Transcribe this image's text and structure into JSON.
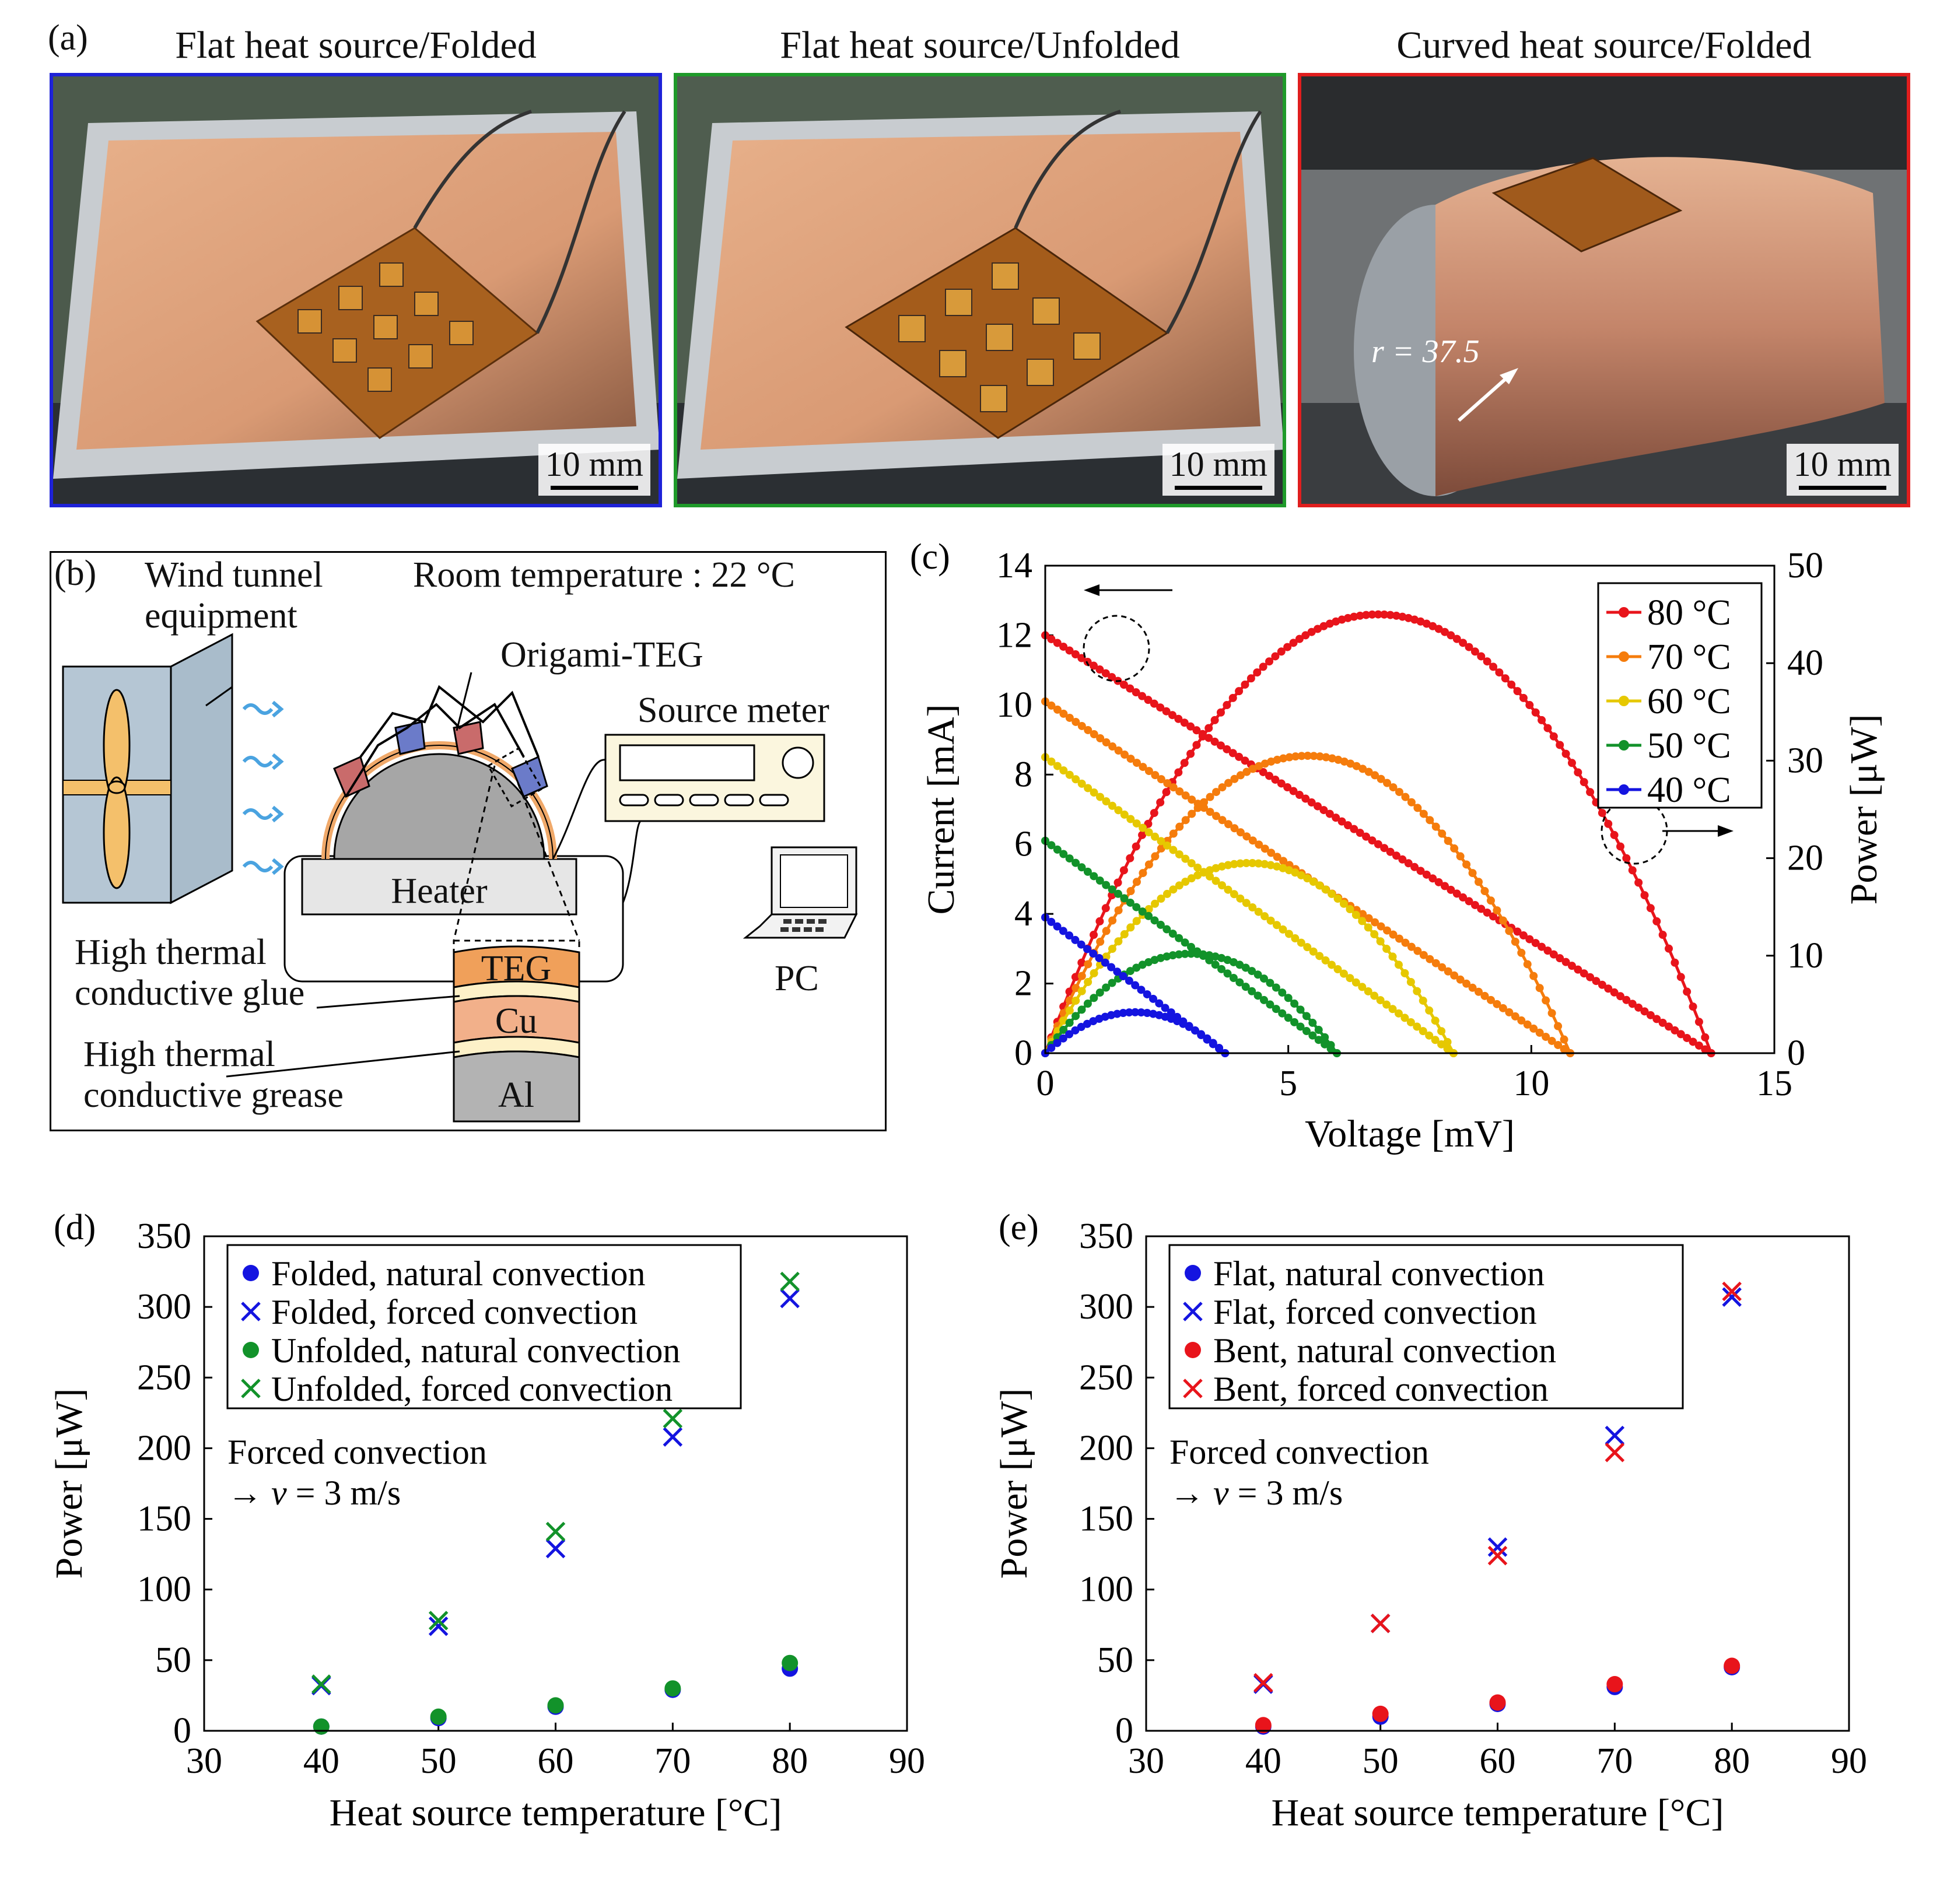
{
  "panel_a": {
    "letter": "(a)",
    "photos": [
      {
        "title": "Flat heat source/Folded",
        "border_color": "#1e22d8",
        "scale": "10 mm"
      },
      {
        "title": "Flat heat source/Unfolded",
        "border_color": "#1f9a2a",
        "scale": "10 mm"
      },
      {
        "title": "Curved heat source/Folded",
        "border_color": "#e01e1e",
        "scale": "10 mm",
        "radius_label": "r = 37.5"
      }
    ]
  },
  "panel_b": {
    "letter": "(b)",
    "wind_tunnel": [
      "Wind tunnel",
      "equipment"
    ],
    "room_temp": "Room temperature : 22 °C",
    "origami": "Origami-TEG",
    "source_meter": "Source meter",
    "heater": "Heater",
    "pc": "PC",
    "glue": [
      "High thermal",
      "conductive glue"
    ],
    "grease": [
      "High thermal",
      "conductive grease"
    ],
    "layers": [
      "TEG",
      "Cu",
      "Al"
    ]
  },
  "chart_data": [
    {
      "panel": "(c)",
      "type": "line",
      "xlabel": "Voltage [mV]",
      "ylabel": "Current [mA]",
      "y2label": "Power [μW]",
      "xlim": [
        0,
        15
      ],
      "ylim": [
        0,
        14
      ],
      "y2lim": [
        0,
        50
      ],
      "xticks": [
        0,
        5,
        10,
        15
      ],
      "yticks": [
        0,
        2,
        4,
        6,
        8,
        10,
        12,
        14
      ],
      "y2ticks": [
        0,
        10,
        20,
        30,
        40,
        50
      ],
      "series": [
        {
          "name": "80 °C",
          "color": "#e8141b",
          "voc": 13.7,
          "isc": 12.0,
          "pmax": 45.0
        },
        {
          "name": "70 °C",
          "color": "#f57c0c",
          "voc": 10.8,
          "isc": 10.1,
          "pmax": 30.5
        },
        {
          "name": "60 °C",
          "color": "#e6c800",
          "voc": 8.4,
          "isc": 8.5,
          "pmax": 19.5
        },
        {
          "name": "50 °C",
          "color": "#12922a",
          "voc": 6.0,
          "isc": 6.1,
          "pmax": 10.2
        },
        {
          "name": "40 °C",
          "color": "#1414e0",
          "voc": 3.7,
          "isc": 3.9,
          "pmax": 4.2
        }
      ],
      "legend_position": "top-right"
    },
    {
      "panel": "(d)",
      "type": "scatter",
      "xlabel": "Heat source temperature [°C]",
      "ylabel": "Power [μW]",
      "xlim": [
        30,
        90
      ],
      "ylim": [
        0,
        350
      ],
      "xticks": [
        30,
        40,
        50,
        60,
        70,
        80,
        90
      ],
      "yticks": [
        0,
        50,
        100,
        150,
        200,
        250,
        300,
        350
      ],
      "annotation": [
        "Forced convection",
        "→ v = 3 m/s"
      ],
      "series": [
        {
          "name": "Folded, natural convection",
          "marker": "dot",
          "color": "#1414e0",
          "x": [
            40,
            50,
            60,
            70,
            80
          ],
          "y": [
            3,
            9,
            17,
            29,
            44
          ]
        },
        {
          "name": "Folded, forced convection",
          "marker": "cross",
          "color": "#1414e0",
          "x": [
            40,
            50,
            60,
            70,
            80
          ],
          "y": [
            32,
            74,
            129,
            208,
            306
          ]
        },
        {
          "name": "Unfolded, natural convection",
          "marker": "dot",
          "color": "#12922a",
          "x": [
            40,
            50,
            60,
            70,
            80
          ],
          "y": [
            3,
            10,
            18,
            30,
            48
          ]
        },
        {
          "name": "Unfolded, forced convection",
          "marker": "cross",
          "color": "#12922a",
          "x": [
            40,
            50,
            60,
            70,
            80
          ],
          "y": [
            33,
            78,
            141,
            221,
            318
          ]
        }
      ]
    },
    {
      "panel": "(e)",
      "type": "scatter",
      "xlabel": "Heat source temperature [°C]",
      "ylabel": "Power [μW]",
      "xlim": [
        30,
        90
      ],
      "ylim": [
        0,
        350
      ],
      "xticks": [
        30,
        40,
        50,
        60,
        70,
        80,
        90
      ],
      "yticks": [
        0,
        50,
        100,
        150,
        200,
        250,
        300,
        350
      ],
      "annotation": [
        "Forced convection",
        "→ v = 3 m/s"
      ],
      "series": [
        {
          "name": "Flat, natural convection",
          "marker": "dot",
          "color": "#1414e0",
          "x": [
            40,
            50,
            60,
            70,
            80
          ],
          "y": [
            3,
            10,
            19,
            31,
            45
          ]
        },
        {
          "name": "Flat, forced convection",
          "marker": "cross",
          "color": "#1414e0",
          "x": [
            40,
            50,
            60,
            70,
            80
          ],
          "y": [
            33,
            76,
            130,
            209,
            307
          ]
        },
        {
          "name": "Bent, natural convection",
          "marker": "dot",
          "color": "#e8141b",
          "x": [
            40,
            50,
            60,
            70,
            80
          ],
          "y": [
            4,
            12,
            20,
            33,
            46
          ]
        },
        {
          "name": "Bent, forced convection",
          "marker": "cross",
          "color": "#e8141b",
          "x": [
            40,
            50,
            60,
            70,
            80
          ],
          "y": [
            34,
            76,
            124,
            197,
            311
          ]
        }
      ]
    }
  ]
}
